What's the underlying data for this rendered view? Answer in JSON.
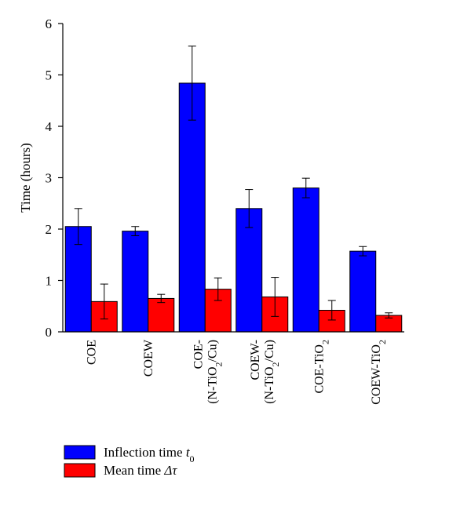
{
  "chart_data": {
    "type": "bar",
    "ylabel": "Time (hours)",
    "ylim": [
      0,
      6
    ],
    "yticks": [
      0,
      1,
      2,
      3,
      4,
      5,
      6
    ],
    "categories": [
      {
        "line1": "COE",
        "line2": ""
      },
      {
        "line1": "COEW",
        "line2": ""
      },
      {
        "line1": "COE-",
        "line2": "(N-TiO2/Cu)"
      },
      {
        "line1": "COEW-",
        "line2": "(N-TiO2/Cu)"
      },
      {
        "line1": "COE-TiO2",
        "line2": ""
      },
      {
        "line1": "COEW-TiO2",
        "line2": ""
      }
    ],
    "series": [
      {
        "name": "Inflection time t0",
        "color": "#0000ff",
        "values": [
          2.05,
          1.96,
          4.84,
          2.4,
          2.8,
          1.57
        ],
        "errors": [
          0.35,
          0.09,
          0.72,
          0.37,
          0.19,
          0.09
        ]
      },
      {
        "name": "Mean time Δτ",
        "color": "#ff0000",
        "values": [
          0.59,
          0.65,
          0.83,
          0.68,
          0.42,
          0.32
        ],
        "errors": [
          0.34,
          0.08,
          0.22,
          0.38,
          0.19,
          0.05
        ]
      }
    ],
    "legend": {
      "placement": "bottom-left",
      "entries": [
        {
          "prefix": "Inflection time ",
          "symbol": "t",
          "sub": "0"
        },
        {
          "prefix": "Mean time ",
          "symbol": "Δτ",
          "sub": ""
        }
      ]
    },
    "grid": false
  }
}
